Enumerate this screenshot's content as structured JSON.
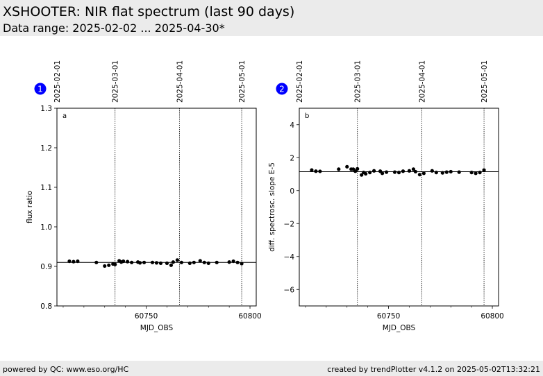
{
  "header": {
    "title": "XSHOOTER: NIR flat spectrum (last 90 days)",
    "subtitle": "Data range: 2025-02-02 ... 2025-04-30*"
  },
  "footer": {
    "left": "powered by QC: www.eso.org/HC",
    "right": "created by trendPlotter v4.1.2 on 2025-05-02T13:32:21"
  },
  "colors": {
    "marker": "#000000",
    "badge": "#0000ff",
    "header_bg": "#ebebeb"
  },
  "chart_data": [
    {
      "type": "scatter",
      "badge": "1",
      "panel_label": "a",
      "xlabel": "MJD_OBS",
      "ylabel": "flux ratio",
      "xlim": [
        60707,
        60803
      ],
      "ylim": [
        0.8,
        1.3
      ],
      "xticks": [
        60750,
        60800
      ],
      "yticks": [
        0.8,
        0.9,
        1.0,
        1.1,
        1.2,
        1.3
      ],
      "ytick_labels": [
        "0.8",
        "0.9",
        "1.0",
        "1.1",
        "1.2",
        "1.3"
      ],
      "reference_line": 0.91,
      "date_lines": [
        {
          "mjd": 60707,
          "label": "2025-02-01"
        },
        {
          "mjd": 60735,
          "label": "2025-03-01"
        },
        {
          "mjd": 60766,
          "label": "2025-04-01"
        },
        {
          "mjd": 60796,
          "label": "2025-05-01"
        }
      ],
      "series": [
        {
          "x": [
            60713,
            60715,
            60717,
            60726,
            60730,
            60732,
            60734,
            60735,
            60737,
            60738,
            60739,
            60741,
            60743,
            60746,
            60747,
            60749,
            60753,
            60755,
            60757,
            60760,
            60762,
            60763,
            60765,
            60767,
            60771,
            60773,
            60776,
            60778,
            60780,
            60784,
            60790,
            60792,
            60794,
            60796
          ],
          "y": [
            0.913,
            0.912,
            0.913,
            0.91,
            0.901,
            0.903,
            0.906,
            0.905,
            0.914,
            0.911,
            0.913,
            0.912,
            0.91,
            0.911,
            0.909,
            0.91,
            0.91,
            0.909,
            0.908,
            0.908,
            0.903,
            0.911,
            0.916,
            0.91,
            0.908,
            0.91,
            0.914,
            0.91,
            0.908,
            0.91,
            0.911,
            0.913,
            0.91,
            0.907
          ]
        }
      ]
    },
    {
      "type": "scatter",
      "badge": "2",
      "panel_label": "b",
      "xlabel": "MJD_OBS",
      "ylabel": "diff. spectrosc. slope E-5",
      "xlim": [
        60707,
        60803
      ],
      "ylim": [
        -7,
        5
      ],
      "xticks": [
        60750,
        60800
      ],
      "yticks": [
        -6,
        -4,
        -2,
        0,
        2,
        4
      ],
      "ytick_labels": [
        "−6",
        "−4",
        "−2",
        "0",
        "2",
        "4"
      ],
      "reference_line": 1.15,
      "date_lines": [
        {
          "mjd": 60707,
          "label": "2025-02-01"
        },
        {
          "mjd": 60735,
          "label": "2025-03-01"
        },
        {
          "mjd": 60766,
          "label": "2025-04-01"
        },
        {
          "mjd": 60796,
          "label": "2025-05-01"
        }
      ],
      "series": [
        {
          "x": [
            60713,
            60715,
            60717,
            60726,
            60730,
            60732,
            60733,
            60734,
            60735,
            60737,
            60738,
            60739,
            60741,
            60743,
            60746,
            60747,
            60749,
            60753,
            60755,
            60757,
            60760,
            60762,
            60763,
            60765,
            60767,
            60771,
            60773,
            60776,
            60778,
            60780,
            60784,
            60790,
            60792,
            60794,
            60796
          ],
          "y": [
            1.25,
            1.18,
            1.17,
            1.3,
            1.45,
            1.3,
            1.3,
            1.18,
            1.32,
            0.95,
            1.1,
            1.02,
            1.1,
            1.2,
            1.18,
            1.05,
            1.12,
            1.12,
            1.1,
            1.18,
            1.2,
            1.3,
            1.15,
            0.97,
            1.05,
            1.2,
            1.1,
            1.08,
            1.12,
            1.15,
            1.12,
            1.1,
            1.05,
            1.1,
            1.25
          ]
        }
      ]
    }
  ]
}
